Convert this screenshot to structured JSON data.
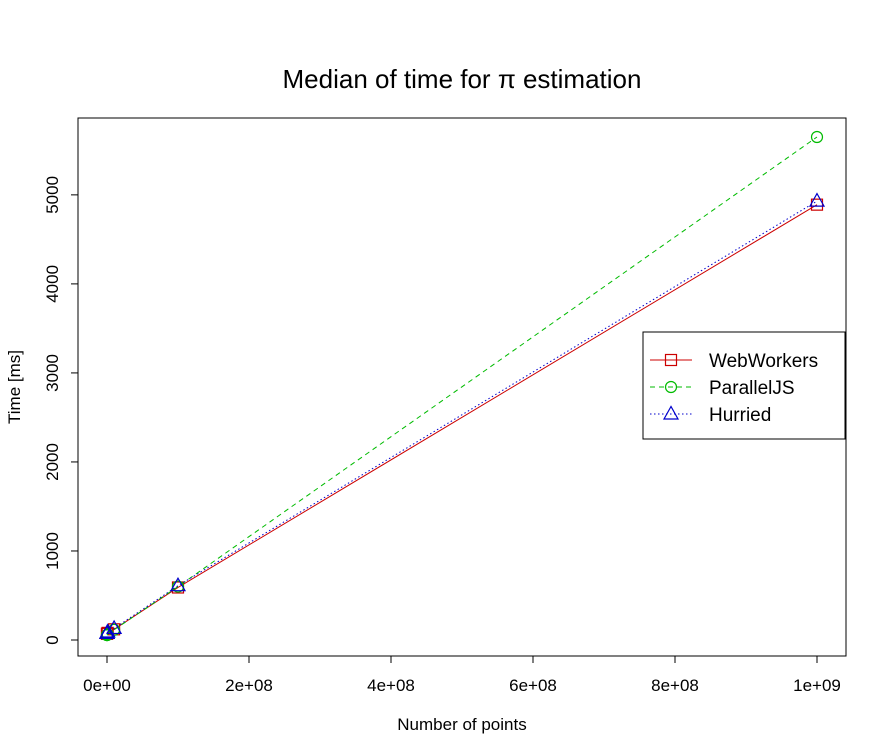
{
  "chart_data": {
    "type": "line",
    "title": "Median of time for π estimation",
    "xlabel": "Number of points",
    "ylabel": "Time [ms]",
    "xlim": [
      0,
      1000000000
    ],
    "ylim": [
      0,
      5650
    ],
    "x_ticks": [
      0,
      200000000,
      400000000,
      600000000,
      800000000,
      1000000000
    ],
    "x_tick_labels": [
      "0e+00",
      "2e+08",
      "4e+08",
      "6e+08",
      "8e+08",
      "1e+09"
    ],
    "y_ticks": [
      0,
      1000,
      2000,
      3000,
      4000,
      5000
    ],
    "y_tick_labels": [
      "0",
      "1000",
      "2000",
      "3000",
      "4000",
      "5000"
    ],
    "grid": false,
    "legend_position": "right",
    "x": [
      1000,
      10000,
      100000,
      1000000,
      10000000,
      100000000,
      1000000000
    ],
    "series": [
      {
        "name": "WebWorkers",
        "values": [
          70,
          70,
          72,
          80,
          120,
          590,
          4890
        ],
        "color": "#cc0000",
        "marker": "square",
        "line_style": "solid"
      },
      {
        "name": "ParallelJS",
        "values": [
          55,
          55,
          58,
          65,
          115,
          600,
          5650
        ],
        "color": "#00bb00",
        "marker": "circle",
        "line_style": "dashed"
      },
      {
        "name": "Hurried",
        "values": [
          75,
          75,
          78,
          90,
          130,
          610,
          4930
        ],
        "color": "#0000cc",
        "marker": "triangle",
        "line_style": "dotted"
      }
    ]
  }
}
